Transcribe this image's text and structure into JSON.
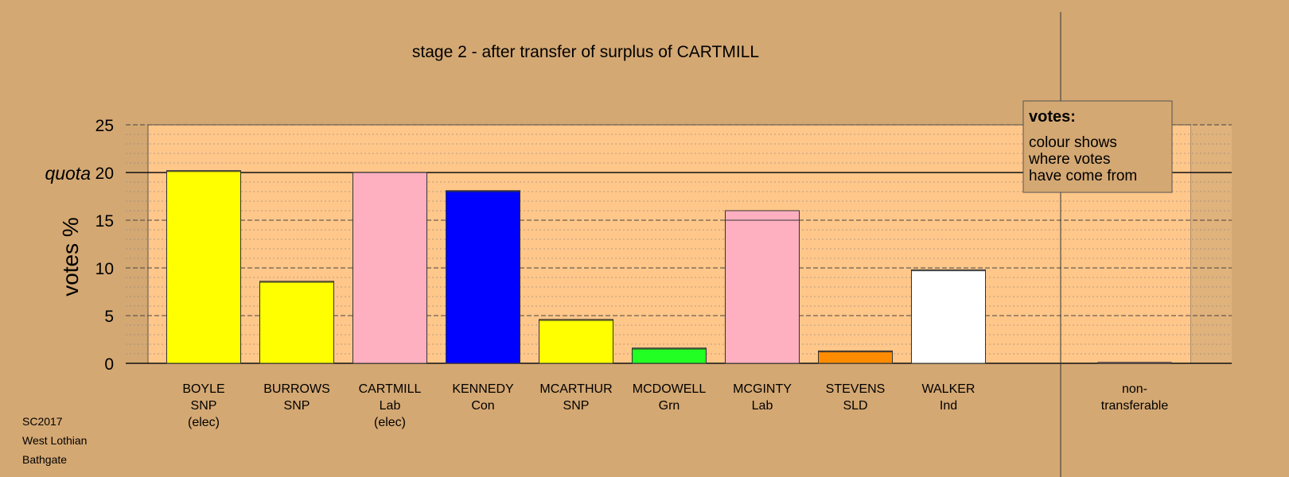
{
  "chart_data": {
    "type": "bar",
    "title": "stage 2 - after transfer of surplus of CARTMILL",
    "ylabel": "votes %",
    "ylim": [
      0,
      25
    ],
    "yticks": [
      0,
      5,
      10,
      15,
      20,
      25
    ],
    "quota": 20,
    "quota_label": "quota",
    "grid": true,
    "candidates": [
      {
        "name": "BOYLE",
        "party": "SNP",
        "status": "(elec)",
        "value": 20.2,
        "colour": "#ffff00",
        "top_colour": "#ffff00",
        "transfer": 0.1
      },
      {
        "name": "BURROWS",
        "party": "SNP",
        "status": "",
        "value": 8.6,
        "colour": "#ffff00",
        "top_colour": "#ffff00",
        "transfer": 0.1
      },
      {
        "name": "CARTMILL",
        "party": "Lab",
        "status": "(elec)",
        "value": 20.0,
        "colour": "#ffb0c0",
        "top_colour": "#ffb0c0",
        "transfer": 0
      },
      {
        "name": "KENNEDY",
        "party": "Con",
        "status": "",
        "value": 18.1,
        "colour": "#0000ff",
        "top_colour": "#0000ff",
        "transfer": 0.1
      },
      {
        "name": "MCARTHUR",
        "party": "SNP",
        "status": "",
        "value": 4.6,
        "colour": "#ffff00",
        "top_colour": "#ffff00",
        "transfer": 0.1
      },
      {
        "name": "MCDOWELL",
        "party": "Grn",
        "status": "",
        "value": 1.6,
        "colour": "#22ff22",
        "top_colour": "#22ff22",
        "transfer": 0.1
      },
      {
        "name": "MCGINTY",
        "party": "Lab",
        "status": "",
        "value": 16.0,
        "colour": "#ffb0c0",
        "top_colour": "#ffb0c0",
        "transfer": 1.0
      },
      {
        "name": "STEVENS",
        "party": "SLD",
        "status": "",
        "value": 1.3,
        "colour": "#ff8c00",
        "top_colour": "#ff8c00",
        "transfer": 0.1
      },
      {
        "name": "WALKER",
        "party": "Ind",
        "status": "",
        "value": 9.8,
        "colour": "#ffffff",
        "top_colour": "#ffffff",
        "transfer": 0.1
      }
    ],
    "nontransferable": {
      "label_line1": "non-",
      "label_line2": "transferable",
      "value": 0.1,
      "colour": "#ffb0c0"
    },
    "legend": {
      "title": "votes:",
      "lines": [
        "colour shows",
        "where votes",
        "have come from"
      ]
    }
  },
  "footer": {
    "line1": "SC2017",
    "line2": "West Lothian",
    "line3": "Bathgate"
  },
  "colors": {
    "background": "#d4a873",
    "plot": "#ffc78a",
    "plot_right": "#e0b27c"
  }
}
